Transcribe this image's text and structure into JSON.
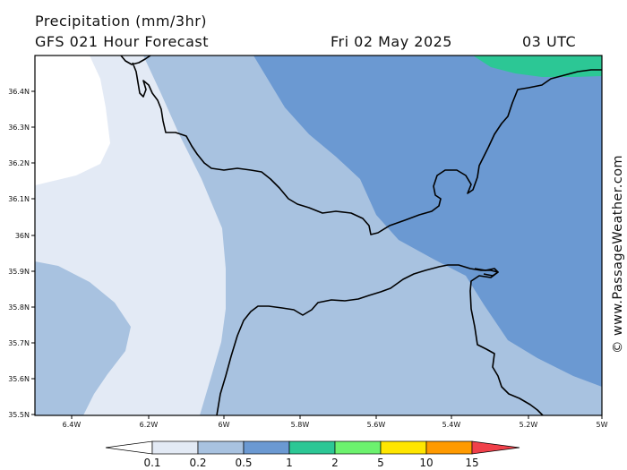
{
  "header": {
    "title": "Precipitation (mm/3hr)",
    "subtitle": "GFS 021 Hour Forecast",
    "date": "Fri 02 May 2025",
    "time": "03 UTC"
  },
  "axes": {
    "y_ticks": [
      "36.4N",
      "36.3N",
      "36.2N",
      "36.1N",
      "36N",
      "35.9N",
      "35.8N",
      "35.7N",
      "35.6N",
      "35.5N"
    ],
    "x_ticks": [
      "6.4W",
      "6.2W",
      "6W",
      "5.8W",
      "5.6W",
      "5.4W",
      "5.2W",
      "5W"
    ]
  },
  "legend": {
    "labels": [
      "0.1",
      "0.2",
      "0.5",
      "1",
      "2",
      "5",
      "10",
      "15"
    ],
    "colors": [
      "#ffffff",
      "#e3eaf5",
      "#a8c2e0",
      "#6b99d2",
      "#2cc795",
      "#6cf26e",
      "#ffe600",
      "#ff9a00",
      "#f0404a"
    ]
  },
  "credit": "© www.PassageWeather.com",
  "colors": {
    "background": "#ffffff",
    "coastline": "#000000"
  }
}
